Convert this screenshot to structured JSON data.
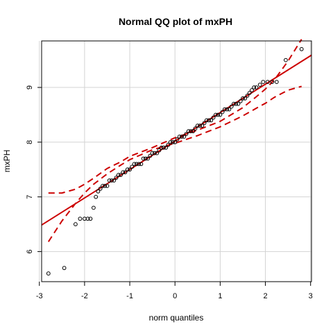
{
  "chart_data": {
    "type": "scatter",
    "title": "Normal QQ plot of  mxPH",
    "xlabel": "norm quantiles",
    "ylabel": "mxPH",
    "xlim": [
      -2.95,
      3.02
    ],
    "ylim": [
      5.45,
      9.85
    ],
    "xticks": [
      -3,
      -2,
      -1,
      0,
      1,
      2,
      3
    ],
    "yticks": [
      6,
      7,
      8,
      9
    ],
    "grid": true,
    "colors": {
      "points": "#000000",
      "reference_line": "#cc0000",
      "envelope": "#cc0000"
    },
    "reference_line": {
      "intercept": 8.02,
      "slope": 0.52
    },
    "envelope": {
      "x": [
        -2.8,
        -2.5,
        -2.2,
        -2.0,
        -1.8,
        -1.5,
        -1.2,
        -1.0,
        -0.5,
        0.0,
        0.5,
        1.0,
        1.2,
        1.5,
        1.8,
        2.0,
        2.2,
        2.5,
        2.8
      ],
      "lower": [
        6.18,
        6.56,
        6.88,
        7.07,
        7.23,
        7.42,
        7.58,
        7.68,
        7.86,
        7.98,
        8.12,
        8.28,
        8.36,
        8.48,
        8.62,
        8.71,
        8.82,
        8.95,
        9.02
      ],
      "upper": [
        7.07,
        7.07,
        7.14,
        7.23,
        7.34,
        7.52,
        7.64,
        7.74,
        7.9,
        8.08,
        8.22,
        8.38,
        8.48,
        8.63,
        8.83,
        8.97,
        9.14,
        9.48,
        9.88
      ]
    },
    "points": [
      [
        -2.8,
        5.6
      ],
      [
        -2.45,
        5.7
      ],
      [
        -2.2,
        6.5
      ],
      [
        -2.1,
        6.6
      ],
      [
        -2.0,
        6.6
      ],
      [
        -1.93,
        6.6
      ],
      [
        -1.87,
        6.6
      ],
      [
        -1.8,
        6.8
      ],
      [
        -1.75,
        7.0
      ],
      [
        -1.7,
        7.1
      ],
      [
        -1.65,
        7.15
      ],
      [
        -1.6,
        7.2
      ],
      [
        -1.55,
        7.2
      ],
      [
        -1.5,
        7.2
      ],
      [
        -1.45,
        7.3
      ],
      [
        -1.4,
        7.3
      ],
      [
        -1.35,
        7.3
      ],
      [
        -1.3,
        7.35
      ],
      [
        -1.25,
        7.4
      ],
      [
        -1.2,
        7.4
      ],
      [
        -1.15,
        7.45
      ],
      [
        -1.1,
        7.45
      ],
      [
        -1.05,
        7.5
      ],
      [
        -1.0,
        7.5
      ],
      [
        -0.95,
        7.55
      ],
      [
        -0.9,
        7.6
      ],
      [
        -0.85,
        7.6
      ],
      [
        -0.8,
        7.6
      ],
      [
        -0.75,
        7.6
      ],
      [
        -0.7,
        7.7
      ],
      [
        -0.65,
        7.7
      ],
      [
        -0.6,
        7.7
      ],
      [
        -0.55,
        7.75
      ],
      [
        -0.5,
        7.8
      ],
      [
        -0.45,
        7.8
      ],
      [
        -0.4,
        7.8
      ],
      [
        -0.35,
        7.85
      ],
      [
        -0.3,
        7.9
      ],
      [
        -0.25,
        7.9
      ],
      [
        -0.2,
        7.9
      ],
      [
        -0.15,
        7.95
      ],
      [
        -0.1,
        8.0
      ],
      [
        -0.05,
        8.0
      ],
      [
        0.0,
        8.0
      ],
      [
        0.05,
        8.05
      ],
      [
        0.1,
        8.1
      ],
      [
        0.15,
        8.1
      ],
      [
        0.2,
        8.1
      ],
      [
        0.25,
        8.15
      ],
      [
        0.3,
        8.2
      ],
      [
        0.35,
        8.2
      ],
      [
        0.4,
        8.2
      ],
      [
        0.45,
        8.25
      ],
      [
        0.5,
        8.3
      ],
      [
        0.55,
        8.3
      ],
      [
        0.6,
        8.3
      ],
      [
        0.65,
        8.35
      ],
      [
        0.7,
        8.4
      ],
      [
        0.75,
        8.4
      ],
      [
        0.8,
        8.4
      ],
      [
        0.85,
        8.45
      ],
      [
        0.9,
        8.5
      ],
      [
        0.95,
        8.5
      ],
      [
        1.0,
        8.5
      ],
      [
        1.05,
        8.55
      ],
      [
        1.1,
        8.6
      ],
      [
        1.15,
        8.6
      ],
      [
        1.2,
        8.6
      ],
      [
        1.25,
        8.65
      ],
      [
        1.3,
        8.7
      ],
      [
        1.35,
        8.7
      ],
      [
        1.4,
        8.7
      ],
      [
        1.45,
        8.75
      ],
      [
        1.5,
        8.8
      ],
      [
        1.55,
        8.8
      ],
      [
        1.6,
        8.85
      ],
      [
        1.65,
        8.9
      ],
      [
        1.7,
        8.95
      ],
      [
        1.75,
        9.0
      ],
      [
        1.8,
        9.0
      ],
      [
        1.88,
        9.05
      ],
      [
        1.95,
        9.1
      ],
      [
        2.05,
        9.1
      ],
      [
        2.15,
        9.1
      ],
      [
        2.25,
        9.1
      ],
      [
        2.45,
        9.5
      ],
      [
        2.8,
        9.7
      ]
    ]
  }
}
